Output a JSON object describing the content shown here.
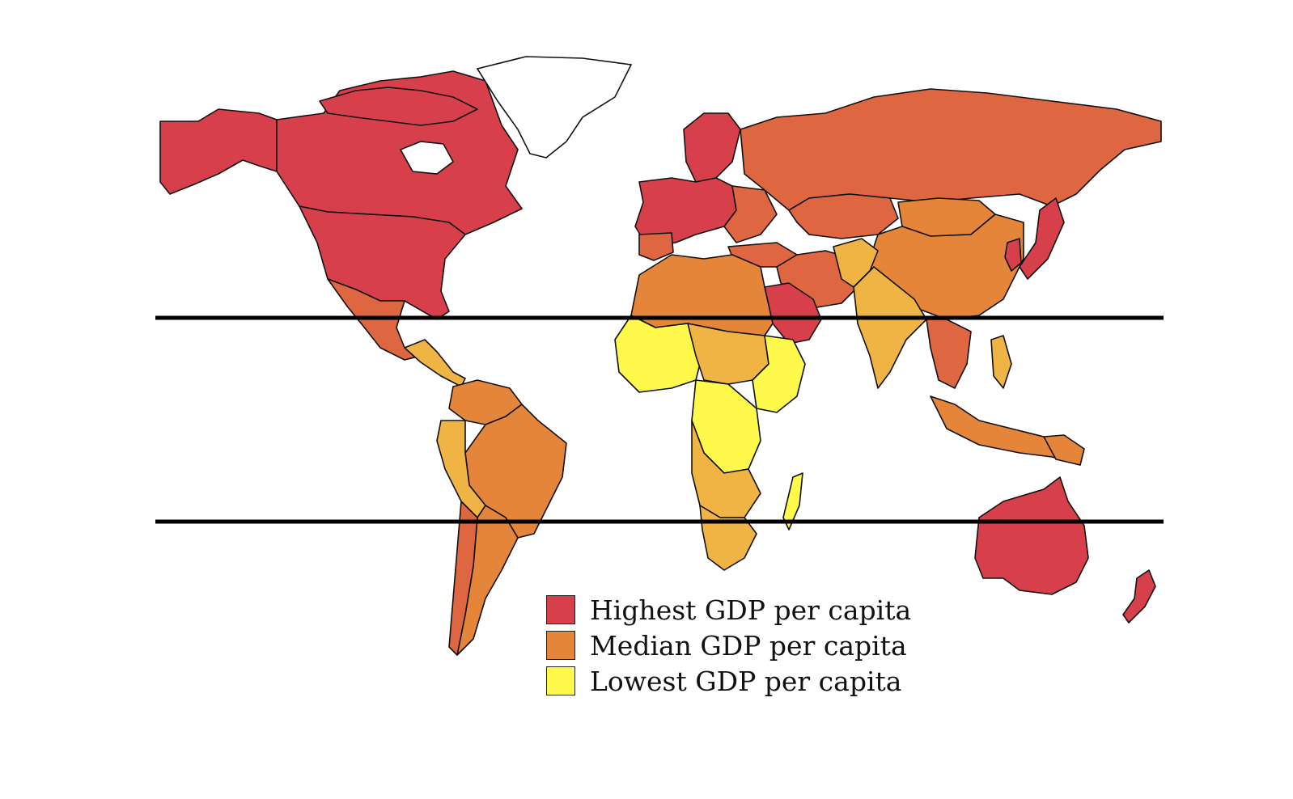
{
  "legend": {
    "items": [
      {
        "label": "Highest GDP per capita",
        "color": "#d7404b"
      },
      {
        "label": "Median GDP per capita",
        "color": "#e5853a"
      },
      {
        "label": "Lowest GDP per capita",
        "color": "#fef94b"
      }
    ]
  },
  "colors": {
    "highest": "#d7404b",
    "upper_median": "#de6640",
    "median": "#e5853a",
    "lower": "#f0b445",
    "lowest": "#fef94b",
    "outline": "#111111",
    "tropic_lines": "#000000",
    "background": "#ffffff"
  },
  "map": {
    "projection": "equirectangular world map",
    "reference_lines": [
      "Tropic of Cancer",
      "Tropic of Capricorn"
    ]
  }
}
